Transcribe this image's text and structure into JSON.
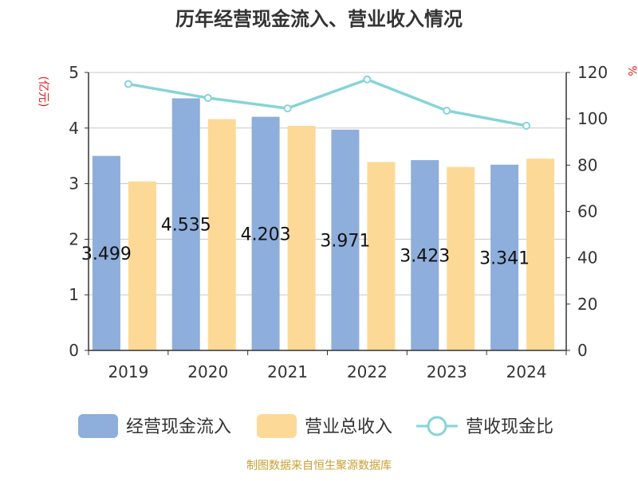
{
  "chart_data": {
    "type": "bar",
    "title": "历年经营现金流入、营业收入情况",
    "categories": [
      "2019",
      "2020",
      "2021",
      "2022",
      "2023",
      "2024"
    ],
    "y_left": {
      "label": "(亿元)",
      "ylim": [
        0,
        5
      ],
      "ticks": [
        "0",
        "1",
        "2",
        "3",
        "4",
        "5"
      ]
    },
    "y_right": {
      "label": "%",
      "ylim": [
        0,
        120
      ],
      "ticks": [
        "0",
        "20",
        "40",
        "60",
        "80",
        "100",
        "120"
      ]
    },
    "series": [
      {
        "name": "经营现金流入",
        "kind": "bar",
        "axis": "left",
        "color": "#8eaedb",
        "values": [
          3.499,
          4.535,
          4.203,
          3.971,
          3.423,
          3.341
        ],
        "labels": [
          "3.499",
          "4.535",
          "4.203",
          "3.971",
          "3.423",
          "3.341"
        ]
      },
      {
        "name": "营业总收入",
        "kind": "bar",
        "axis": "left",
        "color": "#fdd998",
        "values": [
          3.04,
          4.16,
          4.04,
          3.39,
          3.3,
          3.45
        ]
      },
      {
        "name": "营收现金比",
        "kind": "line",
        "axis": "right",
        "color": "#86d4d8",
        "values": [
          115,
          109,
          104.5,
          117,
          103.5,
          97
        ]
      }
    ],
    "grid": true,
    "legend_position": "bottom"
  },
  "source_text": "制图数据来自恒生聚源数据库",
  "colors": {
    "title": "#333333",
    "axis_unit": "#e02020",
    "source": "#c8a032",
    "grid": "#c8c8c8",
    "axis": "#333333"
  }
}
